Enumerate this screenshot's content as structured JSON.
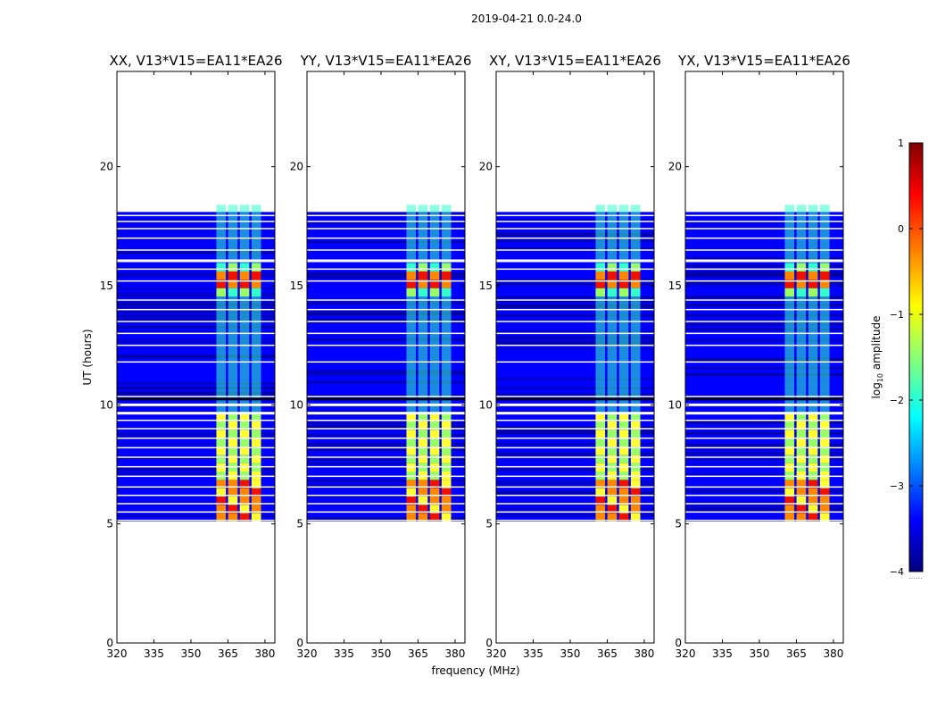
{
  "suptitle": "2019-04-21 0.0-24.0",
  "colors": {
    "low": "#0000ff",
    "deep_low": "#00008f",
    "cyan": "#33ffcc",
    "green": "#99ff66",
    "yellow": "#ffff33",
    "orange": "#ff8800",
    "red": "#ee1100",
    "gap": "#ffffff"
  },
  "chart_data": [
    {
      "type": "heatmap",
      "title": "XX, V13*V15=EA11*EA26",
      "xlabel": "",
      "ylabel": "UT (hours)",
      "xlim": [
        320,
        384
      ],
      "ylim": [
        0,
        24
      ],
      "x_ticks": [
        "320",
        "335",
        "350",
        "365",
        "380"
      ],
      "y_ticks": [
        "0",
        "5",
        "10",
        "15",
        "20"
      ],
      "data_time_range_hours": [
        5.1,
        18.1
      ],
      "bright_freq_range_mhz": [
        360,
        379
      ],
      "peak_amplitude_log10": 0.3
    },
    {
      "type": "heatmap",
      "title": "YY, V13*V15=EA11*EA26",
      "xlabel": "frequency (MHz)",
      "ylabel": "",
      "xlim": [
        320,
        384
      ],
      "ylim": [
        0,
        24
      ],
      "x_ticks": [
        "320",
        "335",
        "350",
        "365",
        "380"
      ],
      "y_ticks": [
        "0",
        "5",
        "10",
        "15",
        "20"
      ],
      "data_time_range_hours": [
        5.1,
        18.1
      ],
      "bright_freq_range_mhz": [
        360,
        379
      ],
      "peak_amplitude_log10": 0.3
    },
    {
      "type": "heatmap",
      "title": "XY, V13*V15=EA11*EA26",
      "xlabel": "",
      "ylabel": "",
      "xlim": [
        320,
        384
      ],
      "ylim": [
        0,
        24
      ],
      "x_ticks": [
        "320",
        "335",
        "350",
        "365",
        "380"
      ],
      "y_ticks": [
        "0",
        "5",
        "10",
        "15",
        "20"
      ],
      "data_time_range_hours": [
        5.1,
        18.1
      ],
      "bright_freq_range_mhz": [
        360,
        379
      ],
      "peak_amplitude_log10": 0.3
    },
    {
      "type": "heatmap",
      "title": "YX, V13*V15=EA11*EA26",
      "xlabel": "",
      "ylabel": "",
      "xlim": [
        320,
        384
      ],
      "ylim": [
        0,
        24
      ],
      "x_ticks": [
        "320",
        "335",
        "350",
        "365",
        "380"
      ],
      "y_ticks": [
        "0",
        "5",
        "10",
        "15",
        "20"
      ],
      "data_time_range_hours": [
        5.1,
        18.1
      ],
      "bright_freq_range_mhz": [
        360,
        379
      ],
      "peak_amplitude_log10": 0.3
    }
  ],
  "colorbar": {
    "label_prefix": "log",
    "label_sub": "10",
    "label_suffix": " amplitude",
    "vmin": -4,
    "vmax": 1,
    "ticks": [
      "1",
      "0",
      "−1",
      "−2",
      "−3",
      "−4"
    ],
    "below_note": "......"
  }
}
